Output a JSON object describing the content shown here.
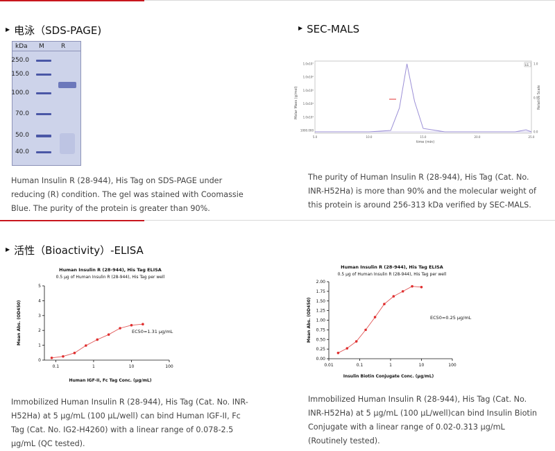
{
  "sections": {
    "sds": {
      "title": "电泳（SDS-PAGE)",
      "description": "Human Insulin R (28-944), His Tag on SDS-PAGE under reducing (R) condition. The gel was stained with Coomassie Blue. The purity of the protein is greater than 90%.",
      "gel": {
        "header_kda": "kDa",
        "header_m": "M",
        "header_r": "R",
        "markers": [
          "250.0",
          "150.0",
          "100.0",
          "70.0",
          "50.0",
          "40.0"
        ]
      }
    },
    "malls": {
      "title": "SEC-MALS",
      "description": "The purity of Human Insulin R (28-944), His Tag (Cat. No. INR-H52Ha) is more than 90% and the molecular weight of this protein is around 256-313 kDa verified by SEC-MALS.",
      "chart": {
        "y_ticks": [
          "1.0x10⁷",
          "1.0x10⁶",
          "1.0x10⁵",
          "1.0x10⁴",
          "1.0x10³",
          "1000.000"
        ],
        "x_ticks": [
          "5.0",
          "10.0",
          "15.0",
          "20.0",
          "25.0"
        ],
        "xlabel": "time (min)",
        "ylabel": "Molar Mass (g/mol)",
        "ylabel_right": "Relative Scale",
        "right_ticks": [
          "1.0",
          "0.5",
          "0.0"
        ],
        "legend": "LS"
      }
    },
    "elisa": {
      "title": "活性（Bioactivity）-ELISA",
      "left_description": "Immobilized Human Insulin R (28-944), His Tag (Cat. No. INR-H52Ha) at 5 μg/mL (100 μL/well) can bind Human IGF-II, Fc Tag (Cat. No. IG2-H4260) with a linear range of 0.078-2.5 μg/mL (QC tested).",
      "right_description": "Immobilized Human Insulin R (28-944), His Tag (Cat. No. INR-H52Ha) at 5 μg/mL (100 μL/well)can bind Insulin Biotin Conjugate with a linear range of 0.02-0.313 μg/mL (Routinely tested)."
    }
  },
  "chart_data": [
    {
      "type": "line",
      "title": "SEC-MALS",
      "x": [
        5,
        10,
        12,
        12.8,
        13.5,
        14.2,
        15,
        17,
        20,
        23.5,
        24.5,
        25
      ],
      "series": [
        {
          "name": "LS",
          "values": [
            0.0,
            0.0,
            0.02,
            0.35,
            1.0,
            0.45,
            0.05,
            0.0,
            0.0,
            0.0,
            0.03,
            0.0
          ]
        }
      ],
      "xlabel": "time (min)",
      "ylabel": "Molar Mass (g/mol)",
      "xlim": [
        5,
        25
      ],
      "ylim": [
        0,
        1.0
      ]
    },
    {
      "type": "scatter",
      "title": "Human Insulin R (28-944), His Tag ELISA",
      "subtitle": "0.5 μg of Human Insulin R (28-944), His Tag per well",
      "x": [
        0.078,
        0.156,
        0.313,
        0.625,
        1.25,
        2.5,
        5,
        10,
        20
      ],
      "values": [
        0.15,
        0.25,
        0.48,
        0.98,
        1.38,
        1.72,
        2.15,
        2.35,
        2.42
      ],
      "xlabel": "Human IGF-II, Fc Tag Conc. (μg/mL)",
      "ylabel": "Mean Abs. (OD450)",
      "annotation": "EC50=1.31 μg/mL",
      "x_ticks": [
        "0.1",
        "1",
        "10",
        "100"
      ],
      "y_ticks": [
        "0",
        "1",
        "2",
        "3",
        "4",
        "5"
      ],
      "xlim": [
        0.05,
        100
      ],
      "ylim": [
        0,
        5
      ],
      "log_x": true
    },
    {
      "type": "scatter",
      "title": "Human Insulin R (28-944), His Tag ELISA",
      "subtitle": "0.5 μg of Human Insulin R (28-944), His Tag per well",
      "x": [
        0.02,
        0.039,
        0.078,
        0.156,
        0.313,
        0.625,
        1.25,
        2.5,
        5,
        10
      ],
      "values": [
        0.15,
        0.27,
        0.45,
        0.75,
        1.08,
        1.42,
        1.62,
        1.75,
        1.88,
        1.86
      ],
      "xlabel": "Insulin Biotin Conjugate Conc. (μg/mL)",
      "ylabel": "Mean Abs. (OD450)",
      "annotation": "EC50=0.25 μg/mL",
      "x_ticks": [
        "0.01",
        "0.1",
        "1",
        "10",
        "100"
      ],
      "y_ticks": [
        "0.00",
        "0.25",
        "0.50",
        "0.75",
        "1.00",
        "1.25",
        "1.50",
        "1.75",
        "2.00"
      ],
      "xlim": [
        0.01,
        100
      ],
      "ylim": [
        0,
        2.0
      ],
      "log_x": true
    }
  ]
}
